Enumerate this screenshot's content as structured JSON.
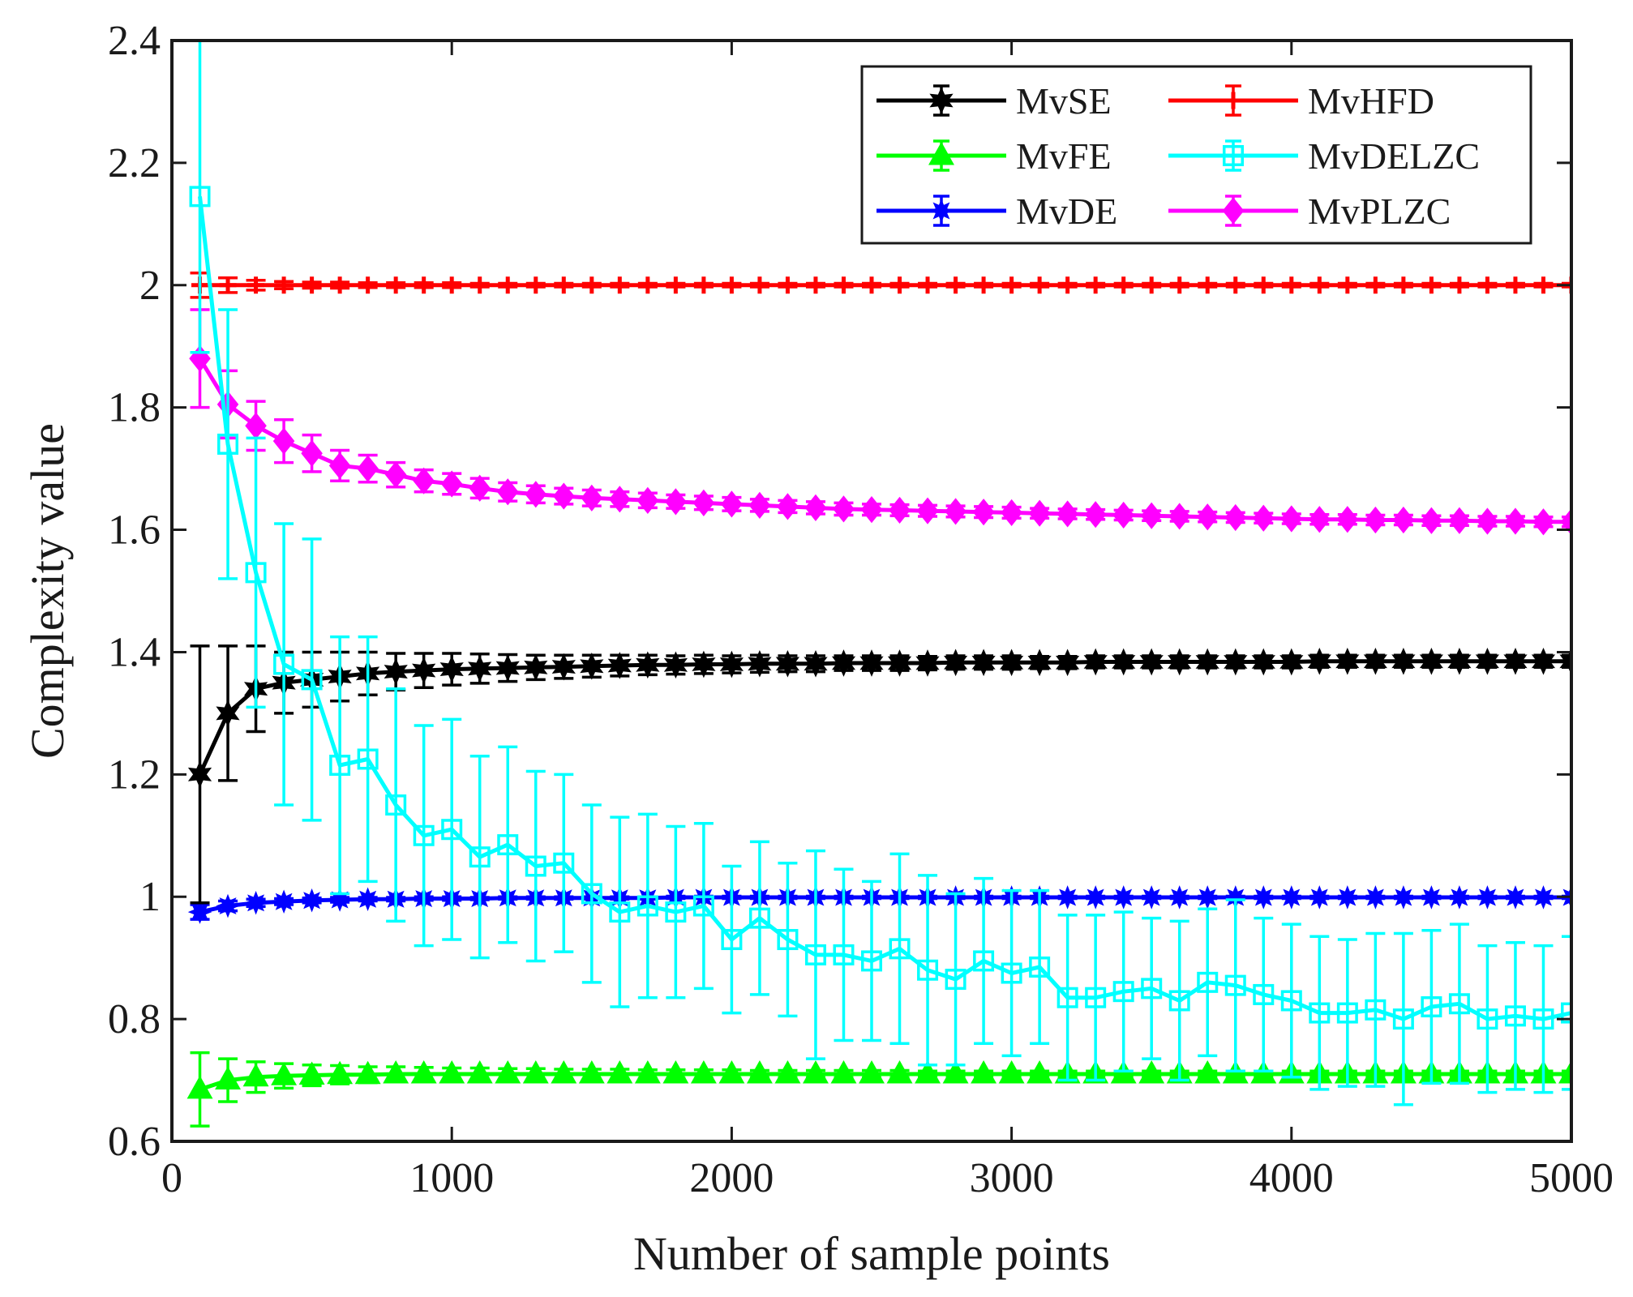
{
  "chart_data": {
    "type": "line",
    "xlabel": "Number of sample points",
    "ylabel": "Complexity value",
    "xlim": [
      0,
      5000
    ],
    "ylim": [
      0.6,
      2.4
    ],
    "xticks": [
      0,
      1000,
      2000,
      3000,
      4000,
      5000
    ],
    "xtick_labels": [
      "0",
      "1000",
      "2000",
      "3000",
      "4000",
      "5000"
    ],
    "yticks": [
      0.6,
      0.8,
      1,
      1.2,
      1.4,
      1.6,
      1.8,
      2,
      2.2,
      2.4
    ],
    "ytick_labels": [
      "0.6",
      "0.8",
      "1",
      "1.2",
      "1.4",
      "1.6",
      "1.8",
      "2",
      "2.2",
      "2.4"
    ],
    "grid": false,
    "legend_position": "top-right",
    "legend_columns": 2,
    "x": [
      100,
      200,
      300,
      400,
      500,
      600,
      700,
      800,
      900,
      1000,
      1100,
      1200,
      1300,
      1400,
      1500,
      1600,
      1700,
      1800,
      1900,
      2000,
      2100,
      2200,
      2300,
      2400,
      2500,
      2600,
      2700,
      2800,
      2900,
      3000,
      3100,
      3200,
      3300,
      3400,
      3500,
      3600,
      3700,
      3800,
      3900,
      4000,
      4100,
      4200,
      4300,
      4400,
      4500,
      4600,
      4700,
      4800,
      4900,
      5000
    ],
    "series": [
      {
        "name": "MvSE",
        "color": "#000000",
        "marker": "hexagram",
        "values": [
          1.2,
          1.3,
          1.34,
          1.35,
          1.355,
          1.36,
          1.365,
          1.368,
          1.37,
          1.372,
          1.373,
          1.374,
          1.375,
          1.376,
          1.377,
          1.378,
          1.379,
          1.379,
          1.38,
          1.38,
          1.381,
          1.381,
          1.381,
          1.382,
          1.382,
          1.382,
          1.382,
          1.383,
          1.383,
          1.383,
          1.383,
          1.383,
          1.384,
          1.384,
          1.384,
          1.384,
          1.384,
          1.384,
          1.384,
          1.384,
          1.385,
          1.385,
          1.385,
          1.385,
          1.385,
          1.385,
          1.385,
          1.385,
          1.385,
          1.385
        ],
        "errors": [
          0.21,
          0.11,
          0.07,
          0.05,
          0.045,
          0.04,
          0.035,
          0.03,
          0.028,
          0.026,
          0.024,
          0.022,
          0.02,
          0.019,
          0.018,
          0.017,
          0.016,
          0.015,
          0.015,
          0.014,
          0.014,
          0.013,
          0.013,
          0.012,
          0.012,
          0.012,
          0.011,
          0.011,
          0.011,
          0.011,
          0.01,
          0.01,
          0.01,
          0.01,
          0.01,
          0.01,
          0.01,
          0.01,
          0.01,
          0.01,
          0.01,
          0.01,
          0.01,
          0.01,
          0.01,
          0.01,
          0.01,
          0.01,
          0.01,
          0.01
        ]
      },
      {
        "name": "MvFE",
        "color": "#00ff00",
        "marker": "triangle",
        "values": [
          0.685,
          0.7,
          0.705,
          0.707,
          0.708,
          0.709,
          0.709,
          0.71,
          0.71,
          0.71,
          0.71,
          0.71,
          0.71,
          0.71,
          0.71,
          0.71,
          0.71,
          0.71,
          0.71,
          0.71,
          0.71,
          0.71,
          0.71,
          0.71,
          0.71,
          0.71,
          0.71,
          0.71,
          0.71,
          0.71,
          0.71,
          0.71,
          0.71,
          0.71,
          0.71,
          0.71,
          0.71,
          0.71,
          0.71,
          0.71,
          0.71,
          0.71,
          0.71,
          0.71,
          0.71,
          0.71,
          0.71,
          0.71,
          0.71,
          0.71
        ],
        "errors": [
          0.06,
          0.035,
          0.025,
          0.02,
          0.017,
          0.015,
          0.013,
          0.012,
          0.011,
          0.01,
          0.01,
          0.009,
          0.009,
          0.008,
          0.008,
          0.008,
          0.007,
          0.007,
          0.007,
          0.007,
          0.006,
          0.006,
          0.006,
          0.006,
          0.006,
          0.006,
          0.005,
          0.005,
          0.005,
          0.005,
          0.005,
          0.005,
          0.005,
          0.005,
          0.005,
          0.005,
          0.005,
          0.005,
          0.005,
          0.005,
          0.005,
          0.005,
          0.005,
          0.005,
          0.005,
          0.005,
          0.005,
          0.005,
          0.005,
          0.005
        ]
      },
      {
        "name": "MvDE",
        "color": "#0000ff",
        "marker": "star",
        "values": [
          0.975,
          0.985,
          0.99,
          0.992,
          0.994,
          0.995,
          0.996,
          0.996,
          0.997,
          0.997,
          0.997,
          0.998,
          0.998,
          0.998,
          0.998,
          0.998,
          0.998,
          0.999,
          0.999,
          0.999,
          0.999,
          0.999,
          0.999,
          0.999,
          0.999,
          0.999,
          0.999,
          0.999,
          0.999,
          0.999,
          0.999,
          0.999,
          0.999,
          0.999,
          0.999,
          0.999,
          0.999,
          0.999,
          0.999,
          0.999,
          0.999,
          0.999,
          0.999,
          0.999,
          0.999,
          0.999,
          0.999,
          0.999,
          0.999,
          0.999
        ],
        "errors": [
          0.012,
          0.008,
          0.006,
          0.005,
          0.004,
          0.004,
          0.003,
          0.003,
          0.003,
          0.003,
          0.002,
          0.002,
          0.002,
          0.002,
          0.002,
          0.002,
          0.002,
          0.002,
          0.002,
          0.002,
          0.002,
          0.002,
          0.002,
          0.002,
          0.002,
          0.002,
          0.002,
          0.002,
          0.002,
          0.002,
          0.002,
          0.002,
          0.002,
          0.002,
          0.002,
          0.002,
          0.002,
          0.002,
          0.002,
          0.002,
          0.002,
          0.002,
          0.002,
          0.002,
          0.002,
          0.002,
          0.002,
          0.002,
          0.002,
          0.002
        ]
      },
      {
        "name": "MvHFD",
        "color": "#ff0000",
        "marker": "plus",
        "values": [
          2.0,
          2.0,
          2.0,
          2.0,
          2.0,
          2.0,
          2.0,
          2.0,
          2.0,
          2.0,
          2.0,
          2.0,
          2.0,
          2.0,
          2.0,
          2.0,
          2.0,
          2.0,
          2.0,
          2.0,
          2.0,
          2.0,
          2.0,
          2.0,
          2.0,
          2.0,
          2.0,
          2.0,
          2.0,
          2.0,
          2.0,
          2.0,
          2.0,
          2.0,
          2.0,
          2.0,
          2.0,
          2.0,
          2.0,
          2.0,
          2.0,
          2.0,
          2.0,
          2.0,
          2.0,
          2.0,
          2.0,
          2.0,
          2.0,
          2.0
        ],
        "errors": [
          0.02,
          0.012,
          0.008,
          0.006,
          0.005,
          0.005,
          0.004,
          0.004,
          0.004,
          0.004,
          0.003,
          0.003,
          0.003,
          0.003,
          0.003,
          0.003,
          0.003,
          0.003,
          0.003,
          0.003,
          0.003,
          0.003,
          0.003,
          0.003,
          0.003,
          0.003,
          0.003,
          0.003,
          0.003,
          0.003,
          0.003,
          0.003,
          0.003,
          0.003,
          0.003,
          0.003,
          0.003,
          0.003,
          0.003,
          0.003,
          0.003,
          0.003,
          0.003,
          0.003,
          0.003,
          0.003,
          0.003,
          0.003,
          0.003,
          0.003
        ]
      },
      {
        "name": "MvDELZC",
        "color": "#00ffff",
        "marker": "square",
        "values": [
          2.145,
          1.74,
          1.53,
          1.38,
          1.355,
          1.215,
          1.225,
          1.15,
          1.1,
          1.11,
          1.065,
          1.085,
          1.05,
          1.055,
          1.005,
          0.975,
          0.985,
          0.975,
          0.985,
          0.93,
          0.965,
          0.93,
          0.905,
          0.905,
          0.895,
          0.915,
          0.88,
          0.865,
          0.895,
          0.875,
          0.885,
          0.835,
          0.835,
          0.845,
          0.85,
          0.83,
          0.86,
          0.855,
          0.84,
          0.83,
          0.81,
          0.81,
          0.815,
          0.8,
          0.82,
          0.825,
          0.8,
          0.805,
          0.8,
          0.81
        ],
        "errors": [
          0.255,
          0.22,
          0.22,
          0.23,
          0.23,
          0.21,
          0.2,
          0.19,
          0.18,
          0.18,
          0.165,
          0.16,
          0.155,
          0.145,
          0.145,
          0.155,
          0.15,
          0.14,
          0.135,
          0.12,
          0.125,
          0.125,
          0.17,
          0.14,
          0.13,
          0.155,
          0.155,
          0.14,
          0.135,
          0.135,
          0.125,
          0.135,
          0.135,
          0.13,
          0.115,
          0.13,
          0.12,
          0.14,
          0.125,
          0.125,
          0.125,
          0.12,
          0.125,
          0.14,
          0.125,
          0.13,
          0.12,
          0.12,
          0.12,
          0.125
        ]
      },
      {
        "name": "MvPLZC",
        "color": "#ff00ff",
        "marker": "diamond",
        "values": [
          1.88,
          1.805,
          1.77,
          1.745,
          1.725,
          1.705,
          1.7,
          1.69,
          1.68,
          1.675,
          1.668,
          1.662,
          1.658,
          1.655,
          1.652,
          1.65,
          1.648,
          1.646,
          1.644,
          1.642,
          1.64,
          1.638,
          1.636,
          1.634,
          1.633,
          1.632,
          1.631,
          1.63,
          1.629,
          1.628,
          1.627,
          1.626,
          1.625,
          1.624,
          1.623,
          1.622,
          1.621,
          1.62,
          1.619,
          1.618,
          1.617,
          1.617,
          1.616,
          1.616,
          1.615,
          1.615,
          1.614,
          1.614,
          1.613,
          1.613
        ],
        "errors": [
          0.08,
          0.055,
          0.04,
          0.035,
          0.03,
          0.025,
          0.022,
          0.02,
          0.018,
          0.017,
          0.016,
          0.015,
          0.014,
          0.013,
          0.013,
          0.012,
          0.012,
          0.011,
          0.011,
          0.011,
          0.01,
          0.01,
          0.01,
          0.01,
          0.009,
          0.009,
          0.009,
          0.009,
          0.009,
          0.009,
          0.008,
          0.008,
          0.008,
          0.008,
          0.008,
          0.008,
          0.008,
          0.008,
          0.008,
          0.008,
          0.008,
          0.008,
          0.008,
          0.008,
          0.008,
          0.008,
          0.008,
          0.008,
          0.008,
          0.008
        ]
      }
    ]
  }
}
